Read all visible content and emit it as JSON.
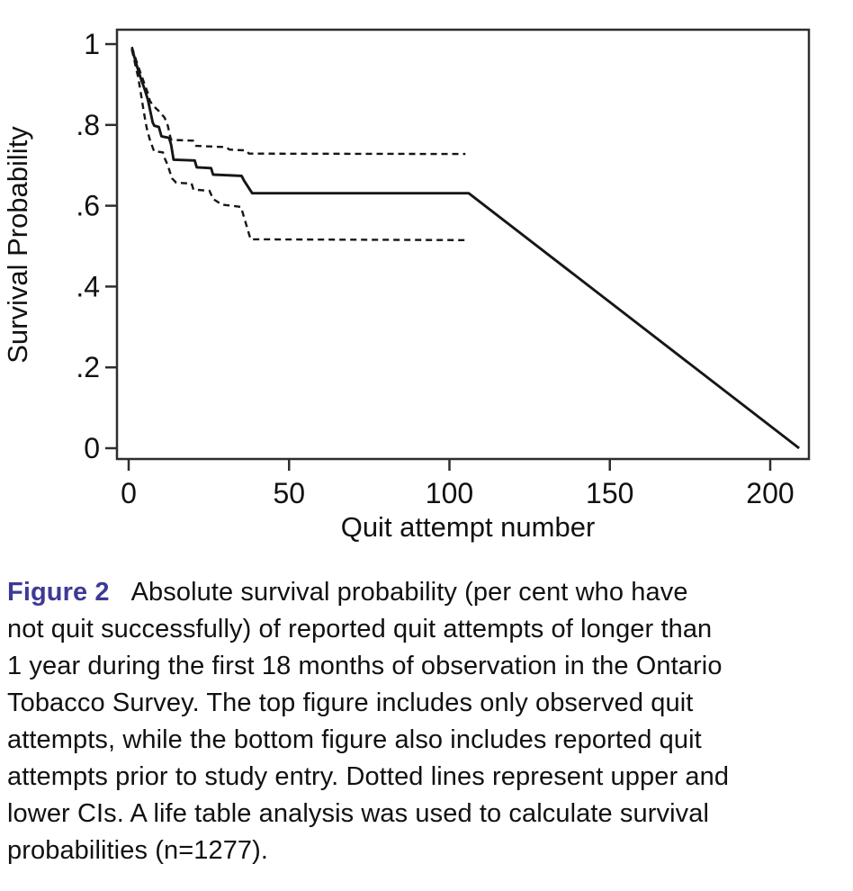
{
  "figure": {
    "caption_label": "Figure 2",
    "accent_color": "#3d3a96",
    "caption_lines": [
      "Absolute survival probability (per cent who have",
      "not quit successfully) of reported quit attempts of longer than",
      "1 year during the first 18 months of observation in the Ontario",
      "Tobacco Survey. The top figure includes only observed quit",
      "attempts, while the bottom figure also includes reported quit",
      "attempts prior to study entry. Dotted lines represent upper and",
      "lower CIs. A life table analysis was used to calculate survival",
      "probabilities (n=1277)."
    ]
  },
  "chart_data": {
    "type": "line",
    "title": "",
    "xlabel": "Quit attempt number",
    "ylabel": "Survival Probability",
    "xlim": [
      0,
      212
    ],
    "ylim": [
      -0.03,
      1.04
    ],
    "grid": false,
    "legend_position": "none",
    "line_color": "#161616",
    "axis_color": "#2e2e2e",
    "xticks": [
      {
        "value": 0,
        "label": "0"
      },
      {
        "value": 50,
        "label": "50"
      },
      {
        "value": 100,
        "label": "100"
      },
      {
        "value": 150,
        "label": "150"
      },
      {
        "value": 200,
        "label": "200"
      }
    ],
    "yticks": [
      {
        "value": 0,
        "label": "0"
      },
      {
        "value": 0.2,
        "label": ".2"
      },
      {
        "value": 0.4,
        "label": ".4"
      },
      {
        "value": 0.6,
        "label": ".6"
      },
      {
        "value": 0.8,
        "label": ".8"
      },
      {
        "value": 1,
        "label": "1"
      }
    ],
    "series": [
      {
        "name": "upper-confidence-interval",
        "style": "dashed",
        "points": [
          [
            1,
            0.993
          ],
          [
            2,
            0.968
          ],
          [
            3,
            0.944
          ],
          [
            4,
            0.922
          ],
          [
            5,
            0.9
          ],
          [
            6,
            0.878
          ],
          [
            6.6,
            0.86
          ],
          [
            7.5,
            0.849
          ],
          [
            9.3,
            0.835
          ],
          [
            11.2,
            0.818
          ],
          [
            12.2,
            0.798
          ],
          [
            13,
            0.77
          ],
          [
            13.3,
            0.763
          ],
          [
            20.1,
            0.761
          ],
          [
            21,
            0.748
          ],
          [
            30.4,
            0.745
          ],
          [
            31.4,
            0.739
          ],
          [
            36.5,
            0.737
          ],
          [
            37.5,
            0.729
          ],
          [
            105,
            0.728
          ]
        ]
      },
      {
        "name": "lower-confidence-interval",
        "style": "dashed",
        "points": [
          [
            1,
            0.986
          ],
          [
            2,
            0.952
          ],
          [
            3,
            0.916
          ],
          [
            4,
            0.868
          ],
          [
            4.7,
            0.832
          ],
          [
            5.6,
            0.793
          ],
          [
            6.5,
            0.766
          ],
          [
            7.5,
            0.744
          ],
          [
            7.9,
            0.735
          ],
          [
            10.7,
            0.732
          ],
          [
            11.3,
            0.716
          ],
          [
            12.2,
            0.7
          ],
          [
            13.5,
            0.668
          ],
          [
            14.8,
            0.657
          ],
          [
            19.6,
            0.655
          ],
          [
            20.2,
            0.64
          ],
          [
            25.2,
            0.637
          ],
          [
            26.3,
            0.617
          ],
          [
            29,
            0.603
          ],
          [
            35,
            0.597
          ],
          [
            38,
            0.517
          ],
          [
            105,
            0.515
          ]
        ]
      },
      {
        "name": "survival-estimate",
        "style": "solid",
        "points": [
          [
            1,
            0.99
          ],
          [
            2,
            0.962
          ],
          [
            3,
            0.934
          ],
          [
            4,
            0.91
          ],
          [
            5,
            0.888
          ],
          [
            6,
            0.862
          ],
          [
            6.5,
            0.843
          ],
          [
            7,
            0.824
          ],
          [
            7.5,
            0.806
          ],
          [
            8,
            0.798
          ],
          [
            9.4,
            0.795
          ],
          [
            10.2,
            0.772
          ],
          [
            12.6,
            0.768
          ],
          [
            13.2,
            0.752
          ],
          [
            14,
            0.714
          ],
          [
            20.6,
            0.712
          ],
          [
            21.2,
            0.695
          ],
          [
            25.7,
            0.693
          ],
          [
            26.3,
            0.677
          ],
          [
            35.2,
            0.674
          ],
          [
            36,
            0.662
          ],
          [
            38.5,
            0.631
          ],
          [
            106,
            0.631
          ],
          [
            209,
            0.0
          ]
        ]
      }
    ]
  }
}
